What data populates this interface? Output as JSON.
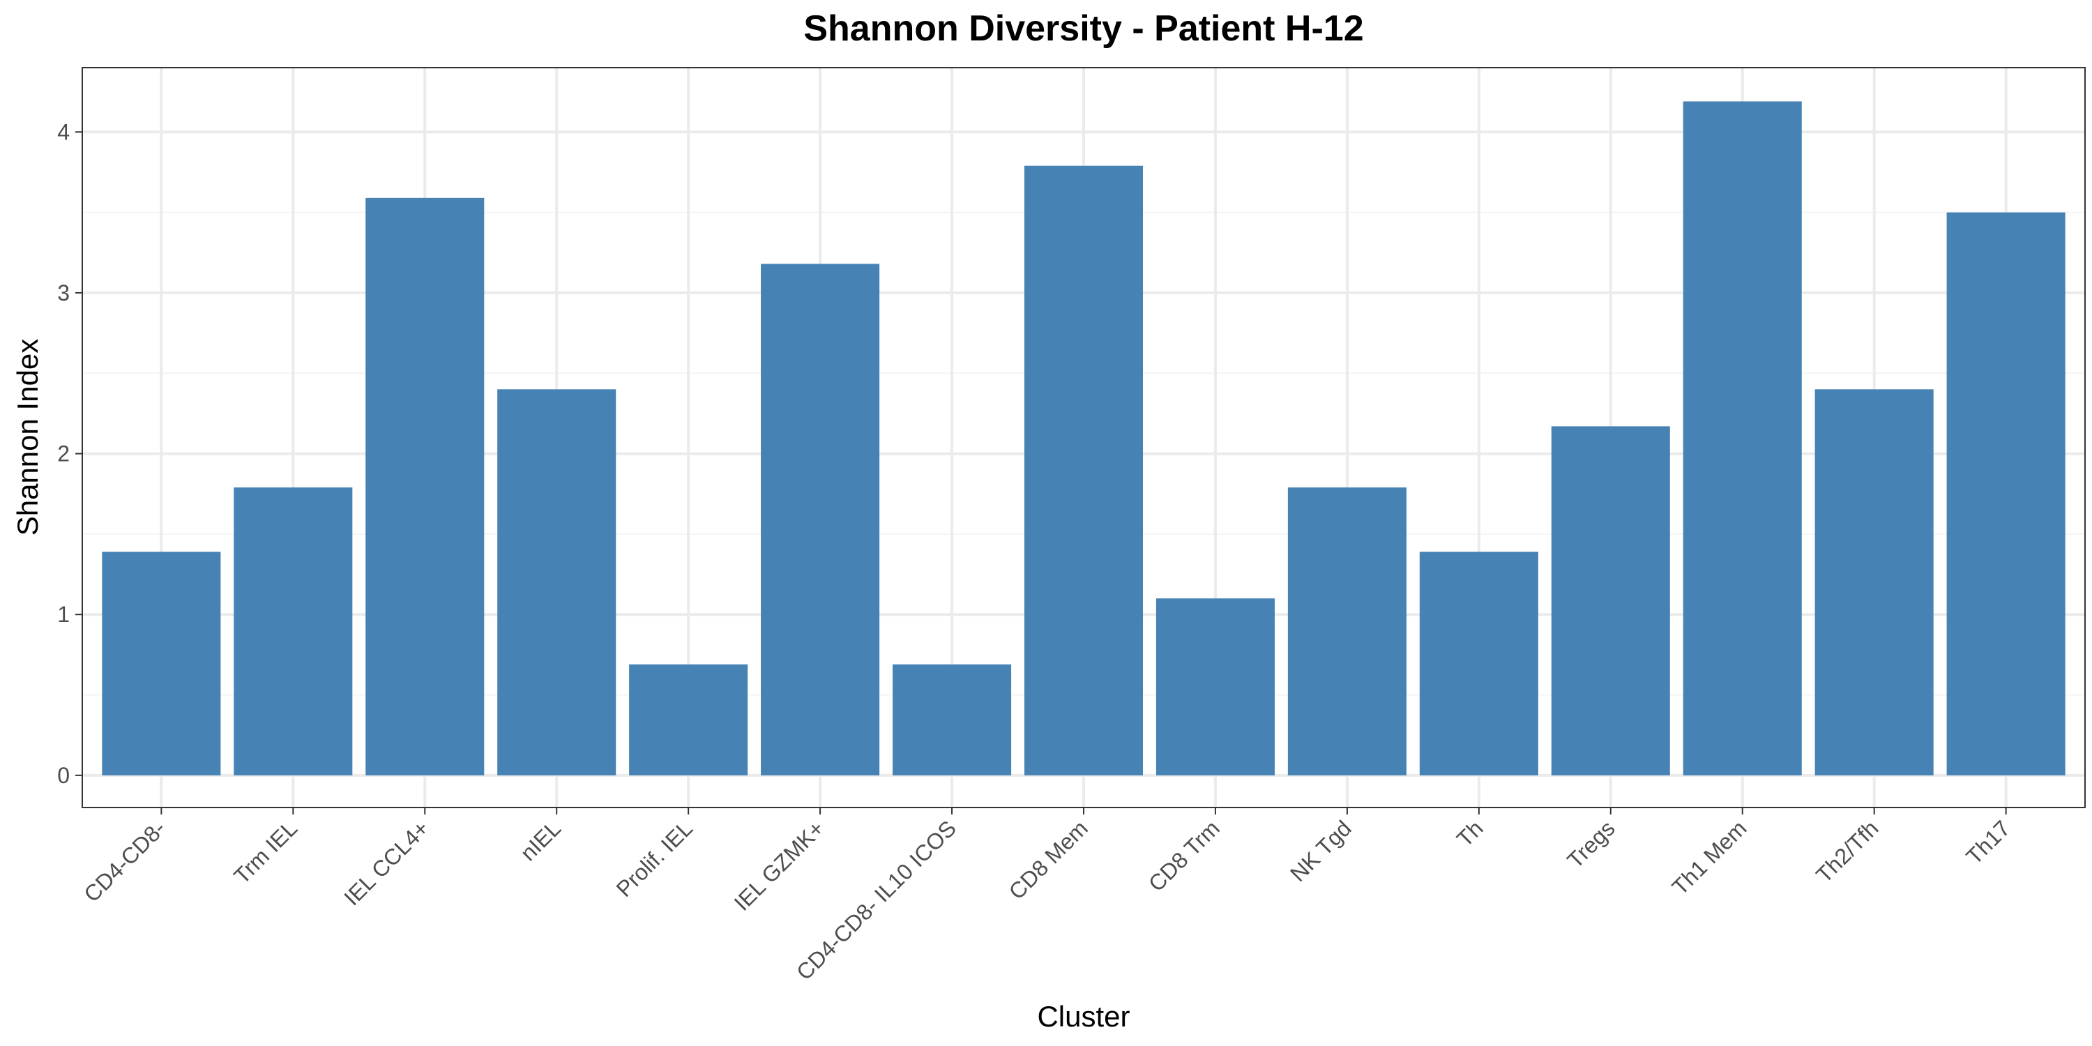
{
  "chart_data": {
    "type": "bar",
    "title": "Shannon Diversity - Patient H-12",
    "xlabel": "Cluster",
    "ylabel": "Shannon Index",
    "categories": [
      "CD4-CD8-",
      "Trm IEL",
      "IEL CCL4+",
      "nIEL",
      "Prolif. IEL",
      "IEL GZMK+",
      "CD4-CD8- IL10 ICOS",
      "CD8 Mem",
      "CD8 Trm",
      "NK Tgd",
      "Th",
      "Tregs",
      "Th1 Mem",
      "Th2/Tfh",
      "Th17"
    ],
    "values": [
      1.39,
      1.79,
      3.59,
      2.4,
      0.69,
      3.18,
      0.69,
      3.79,
      1.1,
      1.79,
      1.39,
      2.17,
      4.19,
      2.4,
      3.5
    ],
    "ylim": [
      -0.2,
      4.4
    ],
    "yticks": [
      0,
      1,
      2,
      3,
      4
    ],
    "grid": true,
    "legend": "none",
    "colors": {
      "bar": "#4682B4",
      "grid_major": "#ebebeb",
      "grid_minor": "#f4f4f4",
      "panel_border": "#333333"
    }
  }
}
